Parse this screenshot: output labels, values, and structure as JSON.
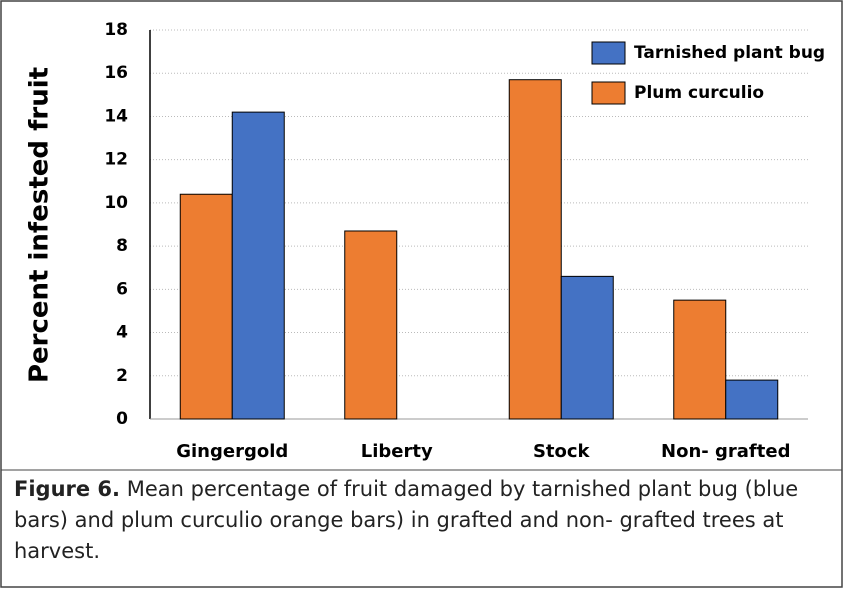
{
  "chart_data": {
    "type": "bar",
    "ylabel": "Percent infested fruit",
    "categories": [
      "Gingergold",
      "Liberty",
      "Stock",
      "Non- grafted"
    ],
    "series": [
      {
        "name": "Plum curculio",
        "color": "#ed7d31",
        "values": [
          10.4,
          8.7,
          15.7,
          5.5
        ]
      },
      {
        "name": "Tarnished plant bug",
        "color": "#4472c4",
        "values": [
          14.2,
          0,
          6.6,
          1.8
        ]
      }
    ],
    "ylim": [
      0,
      18
    ],
    "yticks": [
      0,
      2,
      4,
      6,
      8,
      10,
      12,
      14,
      16,
      18
    ],
    "grid": true,
    "legend": "upper right"
  },
  "caption": {
    "label": "Figure 6.",
    "text": "Mean percentage of fruit damaged by tarnished plant bug (blue bars) and plum curculio orange bars) in grafted and non- grafted trees at harvest."
  }
}
